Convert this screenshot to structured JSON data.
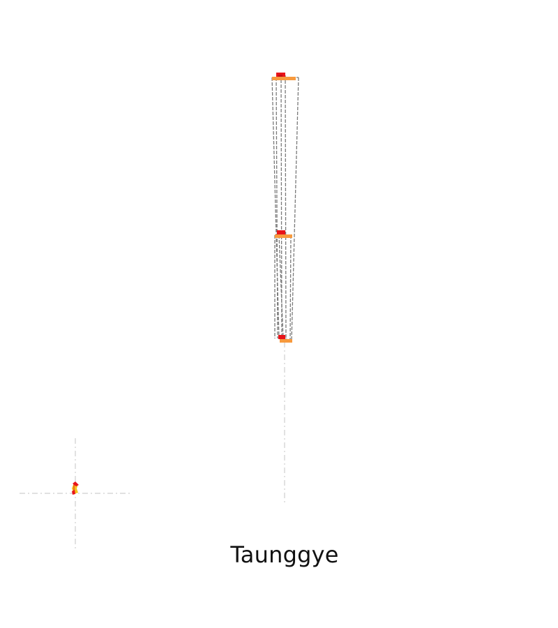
{
  "city_name": "Taunggye",
  "colors": {
    "roof_red": "#e8141a",
    "floor_orange": "#f79a3e",
    "edge_gray": "#7a7a7a",
    "guide_gray": "#cfcfcf",
    "footprint_yellow": "#f4c21c"
  }
}
